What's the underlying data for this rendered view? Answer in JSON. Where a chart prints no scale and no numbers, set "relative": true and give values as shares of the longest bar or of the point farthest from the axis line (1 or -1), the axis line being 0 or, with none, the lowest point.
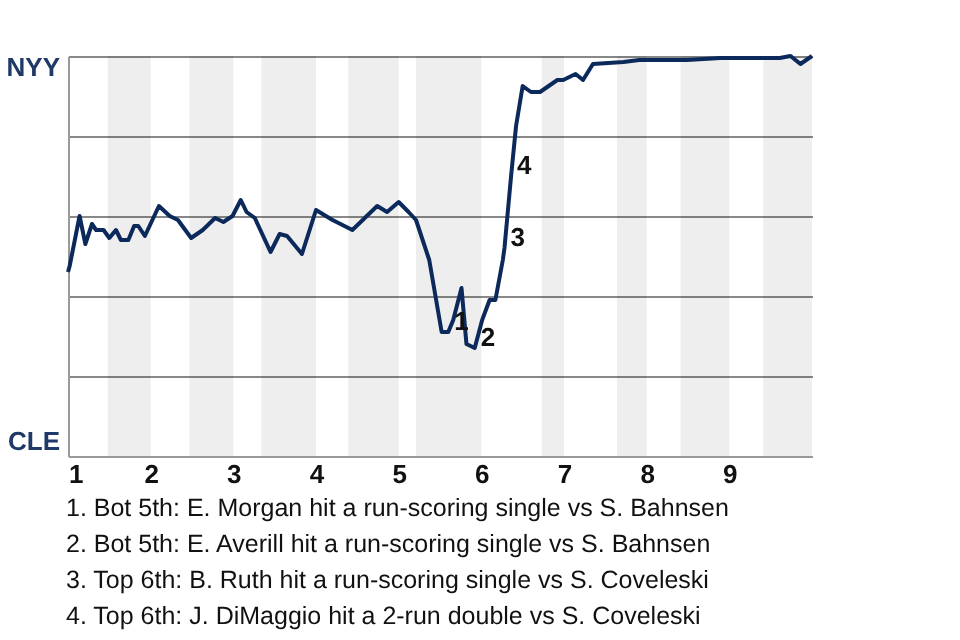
{
  "chart_data": {
    "type": "line",
    "relative": true,
    "xlim": [
      1,
      10
    ],
    "xticks": [
      1,
      2,
      3,
      4,
      5,
      6,
      7,
      8,
      9
    ],
    "grid": "y",
    "marker": "none",
    "line_style": "solid",
    "x": [
      1.0,
      1.02,
      1.14,
      1.21,
      1.29,
      1.34,
      1.43,
      1.5,
      1.58,
      1.64,
      1.73,
      1.8,
      1.85,
      1.93,
      2.1,
      2.23,
      2.33,
      2.49,
      2.63,
      2.78,
      2.88,
      2.99,
      3.09,
      3.16,
      3.26,
      3.45,
      3.56,
      3.65,
      3.83,
      4.0,
      4.2,
      4.44,
      4.74,
      4.86,
      5.0,
      5.12,
      5.21,
      5.37,
      5.52,
      5.6,
      5.66,
      5.76,
      5.82,
      5.92,
      6.01,
      6.1,
      6.17,
      6.26,
      6.28,
      6.36,
      6.42,
      6.5,
      6.6,
      6.71,
      6.92,
      6.99,
      7.14,
      7.23,
      7.35,
      7.72,
      7.91,
      8.49,
      8.89,
      9.47,
      9.61,
      9.74,
      9.86,
      10
    ],
    "series": [
      {
        "color": "#0b2a5b",
        "values": [
          0.46,
          0.475,
          0.6,
          0.53,
          0.58,
          0.565,
          0.565,
          0.545,
          0.565,
          0.54,
          0.54,
          0.575,
          0.575,
          0.55,
          0.625,
          0.6,
          0.59,
          0.545,
          0.565,
          0.595,
          0.585,
          0.6,
          0.64,
          0.61,
          0.595,
          0.51,
          0.555,
          0.55,
          0.505,
          0.615,
          0.59,
          0.565,
          0.625,
          0.61,
          0.635,
          0.61,
          0.59,
          0.49,
          0.31,
          0.31,
          0.34,
          0.42,
          0.28,
          0.27,
          0.34,
          0.39,
          0.39,
          0.49,
          0.52,
          0.7,
          0.825,
          0.925,
          0.91,
          0.91,
          0.94,
          0.94,
          0.955,
          0.94,
          0.98,
          0.985,
          0.99,
          0.99,
          0.995,
          0.995,
          0.995,
          1.0,
          0.98,
          1.0
        ]
      }
    ],
    "bands": [
      {
        "axis": "x",
        "from": 1.48,
        "to": 2,
        "color": "#eeeeee"
      },
      {
        "axis": "x",
        "from": 2.47,
        "to": 3,
        "color": "#eeeeee"
      },
      {
        "axis": "x",
        "from": 3.34,
        "to": 4,
        "color": "#eeeeee"
      },
      {
        "axis": "x",
        "from": 4.39,
        "to": 5,
        "color": "#eeeeee"
      },
      {
        "axis": "x",
        "from": 5.21,
        "to": 6,
        "color": "#eeeeee"
      },
      {
        "axis": "x",
        "from": 6.73,
        "to": 7,
        "color": "#eeeeee"
      },
      {
        "axis": "x",
        "from": 7.64,
        "to": 8,
        "color": "#eeeeee"
      },
      {
        "axis": "x",
        "from": 8.41,
        "to": 9,
        "color": "#eeeeee"
      },
      {
        "axis": "x",
        "from": 9.41,
        "to": 10,
        "color": "#eeeeee"
      }
    ],
    "annotations": [
      {
        "text": "1",
        "x": 5.6,
        "y": 0.31
      },
      {
        "text": "2",
        "x": 5.92,
        "y": 0.27
      },
      {
        "text": "3",
        "x": 6.28,
        "y": 0.52
      },
      {
        "text": "4",
        "x": 6.36,
        "y": 0.7
      },
      "NYY",
      "CLE",
      "1. Bot 5th: E. Morgan hit a run-scoring single vs S. Bahnsen",
      "2. Bot 5th: E. Averill hit a run-scoring single vs S. Bahnsen",
      "3. Top 6th: B. Ruth hit a run-scoring single vs S. Coveleski",
      "4. Top 6th: J. DiMaggio hit a 2-run double vs S. Coveleski"
    ]
  }
}
